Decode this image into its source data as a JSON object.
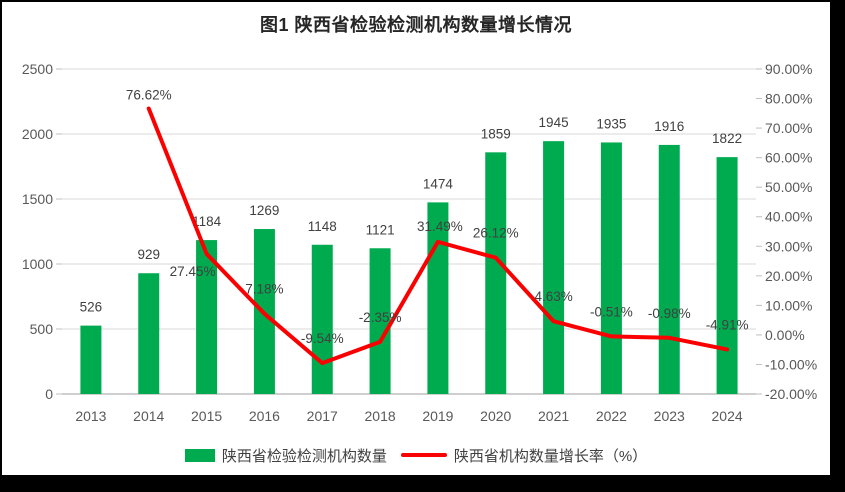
{
  "chart_data": {
    "type": "bar+line",
    "title": "图1 陕西省检验检测机构数量增长情况",
    "categories": [
      "2013",
      "2014",
      "2015",
      "2016",
      "2017",
      "2018",
      "2019",
      "2020",
      "2021",
      "2022",
      "2023",
      "2024"
    ],
    "series": [
      {
        "name": "陕西省检验检测机构数量",
        "type": "bar",
        "axis": "left",
        "values": [
          526,
          929,
          1184,
          1269,
          1148,
          1121,
          1474,
          1859,
          1945,
          1935,
          1916,
          1822
        ]
      },
      {
        "name": "陕西省机构数量增长率（%）",
        "type": "line",
        "axis": "right",
        "values": [
          null,
          76.62,
          27.45,
          7.18,
          -9.54,
          -2.35,
          31.49,
          26.12,
          4.63,
          -0.51,
          -0.98,
          -4.91
        ],
        "point_labels": [
          null,
          "76.62%",
          "27.45%",
          "7.18%",
          "-9.54%",
          "-2.35%",
          "31.49%",
          "26.12%",
          "4.63%",
          "-0.51%",
          "-0.98%",
          "-4.91%"
        ]
      }
    ],
    "axis_left": {
      "min": 0,
      "max": 2500,
      "ticks": [
        0,
        500,
        1000,
        1500,
        2000,
        2500
      ]
    },
    "axis_right": {
      "min": -20,
      "max": 90,
      "ticks": [
        -20,
        -10,
        0,
        10,
        20,
        30,
        40,
        50,
        60,
        70,
        80,
        90
      ],
      "tick_labels": [
        "-20.00%",
        "-10.00%",
        "0.00%",
        "10.00%",
        "20.00%",
        "30.00%",
        "40.00%",
        "50.00%",
        "60.00%",
        "70.00%",
        "80.00%",
        "90.00%"
      ]
    },
    "legend_position": "bottom",
    "grid": true,
    "colors": {
      "bar": "#00AB50",
      "line": "#FB0000",
      "gridline": "#D9D9D9",
      "axis_line": "#BFBFBF",
      "tick_text": "#595959",
      "data_label_text": "#404040",
      "title_text": "#262626",
      "chart_background": "#FFFFFF",
      "outer_background": "#000000"
    }
  }
}
